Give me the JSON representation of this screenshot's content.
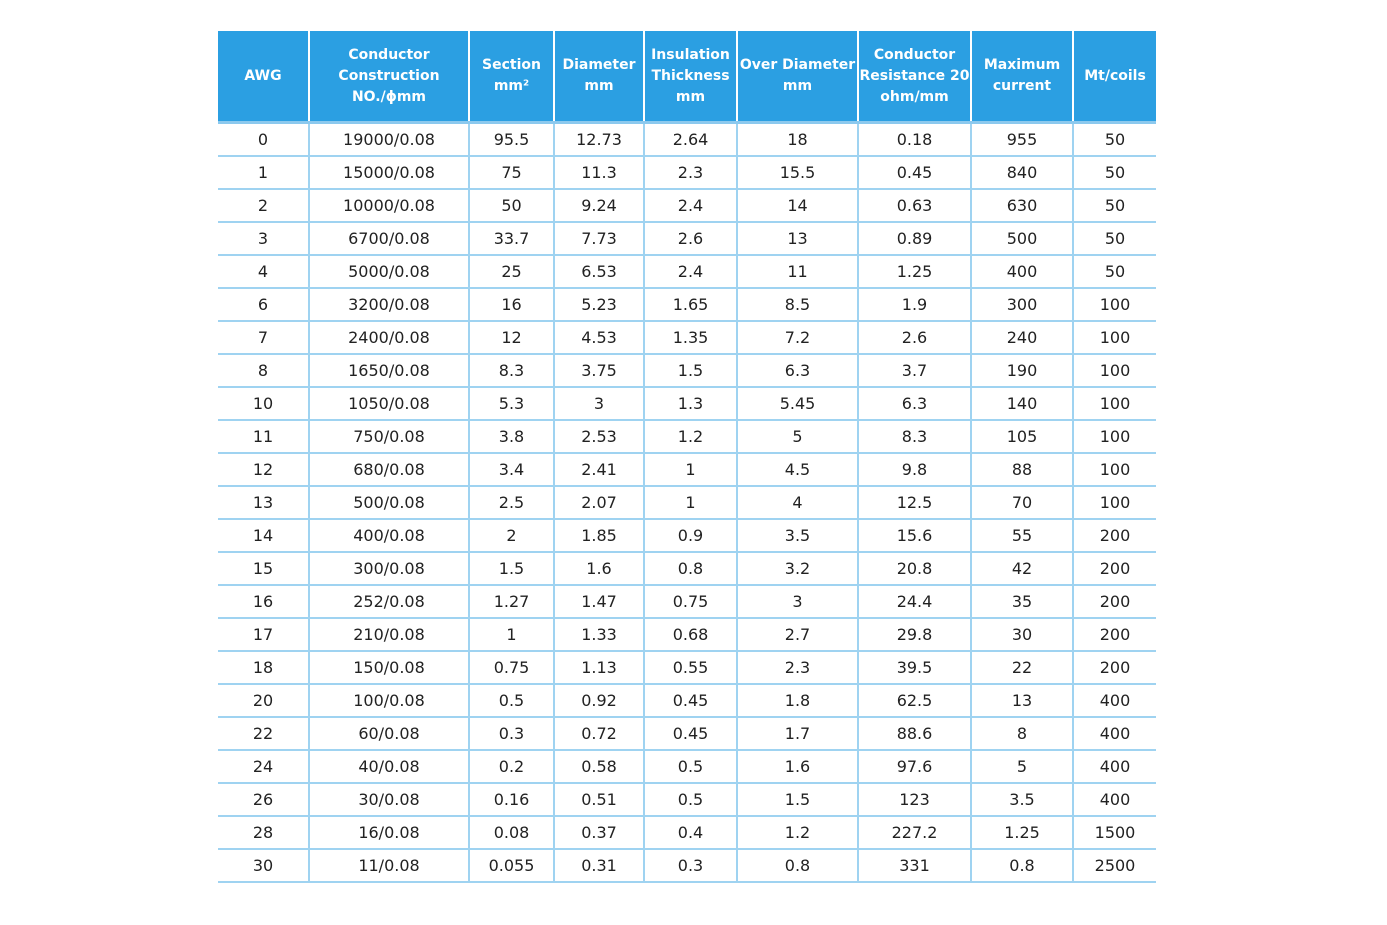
{
  "table": {
    "header": [
      [
        "AWG"
      ],
      [
        "Conductor",
        "Construction",
        "NO./ϕmm"
      ],
      [
        "Section",
        "mm²"
      ],
      [
        "Diameter",
        "mm"
      ],
      [
        "Insulation",
        "Thickness",
        "mm"
      ],
      [
        "Over Diameter",
        "mm"
      ],
      [
        "Conductor",
        "Resistance 20",
        "ohm/mm"
      ],
      [
        "Maximum",
        "current"
      ],
      [
        "Mt/coils"
      ]
    ],
    "rows": [
      [
        "0",
        "19000/0.08",
        "95.5",
        "12.73",
        "2.64",
        "18",
        "0.18",
        "955",
        "50"
      ],
      [
        "1",
        "15000/0.08",
        "75",
        "11.3",
        "2.3",
        "15.5",
        "0.45",
        "840",
        "50"
      ],
      [
        "2",
        "10000/0.08",
        "50",
        "9.24",
        "2.4",
        "14",
        "0.63",
        "630",
        "50"
      ],
      [
        "3",
        "6700/0.08",
        "33.7",
        "7.73",
        "2.6",
        "13",
        "0.89",
        "500",
        "50"
      ],
      [
        "4",
        "5000/0.08",
        "25",
        "6.53",
        "2.4",
        "11",
        "1.25",
        "400",
        "50"
      ],
      [
        "6",
        "3200/0.08",
        "16",
        "5.23",
        "1.65",
        "8.5",
        "1.9",
        "300",
        "100"
      ],
      [
        "7",
        "2400/0.08",
        "12",
        "4.53",
        "1.35",
        "7.2",
        "2.6",
        "240",
        "100"
      ],
      [
        "8",
        "1650/0.08",
        "8.3",
        "3.75",
        "1.5",
        "6.3",
        "3.7",
        "190",
        "100"
      ],
      [
        "10",
        "1050/0.08",
        "5.3",
        "3",
        "1.3",
        "5.45",
        "6.3",
        "140",
        "100"
      ],
      [
        "11",
        "750/0.08",
        "3.8",
        "2.53",
        "1.2",
        "5",
        "8.3",
        "105",
        "100"
      ],
      [
        "12",
        "680/0.08",
        "3.4",
        "2.41",
        "1",
        "4.5",
        "9.8",
        "88",
        "100"
      ],
      [
        "13",
        "500/0.08",
        "2.5",
        "2.07",
        "1",
        "4",
        "12.5",
        "70",
        "100"
      ],
      [
        "14",
        "400/0.08",
        "2",
        "1.85",
        "0.9",
        "3.5",
        "15.6",
        "55",
        "200"
      ],
      [
        "15",
        "300/0.08",
        "1.5",
        "1.6",
        "0.8",
        "3.2",
        "20.8",
        "42",
        "200"
      ],
      [
        "16",
        "252/0.08",
        "1.27",
        "1.47",
        "0.75",
        "3",
        "24.4",
        "35",
        "200"
      ],
      [
        "17",
        "210/0.08",
        "1",
        "1.33",
        "0.68",
        "2.7",
        "29.8",
        "30",
        "200"
      ],
      [
        "18",
        "150/0.08",
        "0.75",
        "1.13",
        "0.55",
        "2.3",
        "39.5",
        "22",
        "200"
      ],
      [
        "20",
        "100/0.08",
        "0.5",
        "0.92",
        "0.45",
        "1.8",
        "62.5",
        "13",
        "400"
      ],
      [
        "22",
        "60/0.08",
        "0.3",
        "0.72",
        "0.45",
        "1.7",
        "88.6",
        "8",
        "400"
      ],
      [
        "24",
        "40/0.08",
        "0.2",
        "0.58",
        "0.5",
        "1.6",
        "97.6",
        "5",
        "400"
      ],
      [
        "26",
        "30/0.08",
        "0.16",
        "0.51",
        "0.5",
        "1.5",
        "123",
        "3.5",
        "400"
      ],
      [
        "28",
        "16/0.08",
        "0.08",
        "0.37",
        "0.4",
        "1.2",
        "227.2",
        "1.25",
        "1500"
      ],
      [
        "30",
        "11/0.08",
        "0.055",
        "0.31",
        "0.3",
        "0.8",
        "331",
        "0.8",
        "2500"
      ]
    ]
  }
}
